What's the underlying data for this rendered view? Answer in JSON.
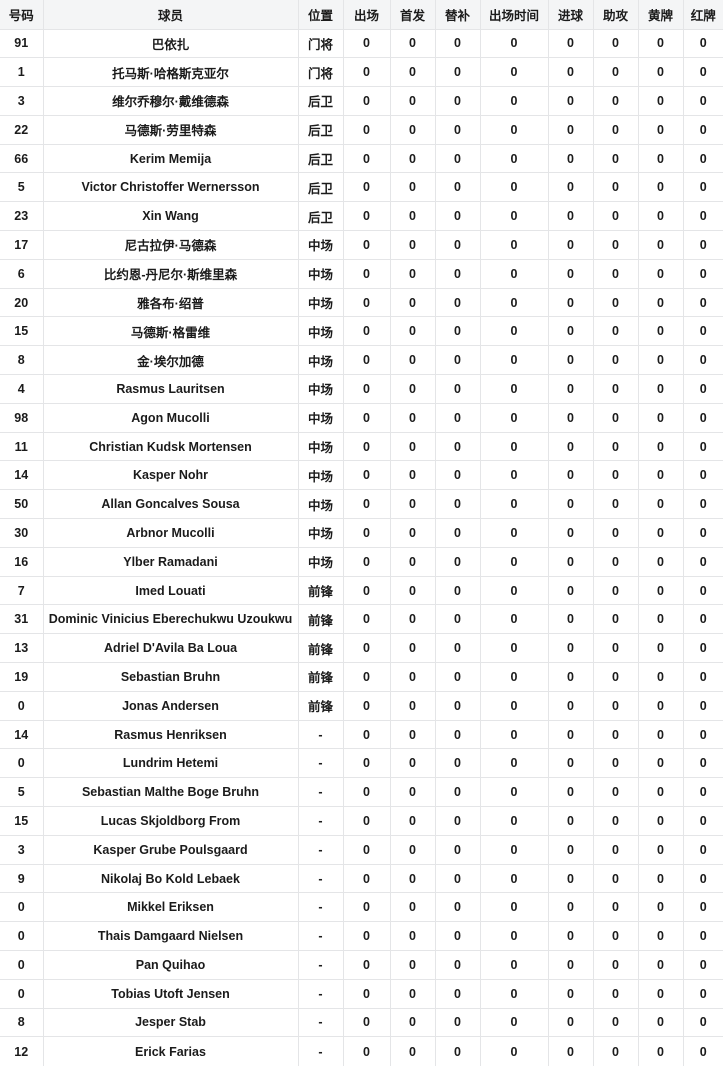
{
  "table": {
    "headers": [
      "号码",
      "球员",
      "位置",
      "出场",
      "首发",
      "替补",
      "出场时间",
      "进球",
      "助攻",
      "黄牌",
      "红牌"
    ],
    "rows": [
      {
        "num": "91",
        "name": "巴依扎",
        "pos": "门将",
        "stats": [
          0,
          0,
          0,
          0,
          0,
          0,
          0,
          0
        ]
      },
      {
        "num": "1",
        "name": "托马斯·哈格斯克亚尔",
        "pos": "门将",
        "stats": [
          0,
          0,
          0,
          0,
          0,
          0,
          0,
          0
        ]
      },
      {
        "num": "3",
        "name": "维尔乔穆尔·戴维德森",
        "pos": "后卫",
        "stats": [
          0,
          0,
          0,
          0,
          0,
          0,
          0,
          0
        ]
      },
      {
        "num": "22",
        "name": "马德斯·劳里特森",
        "pos": "后卫",
        "stats": [
          0,
          0,
          0,
          0,
          0,
          0,
          0,
          0
        ]
      },
      {
        "num": "66",
        "name": "Kerim Memija",
        "pos": "后卫",
        "stats": [
          0,
          0,
          0,
          0,
          0,
          0,
          0,
          0
        ]
      },
      {
        "num": "5",
        "name": "Victor Christoffer Wernersson",
        "pos": "后卫",
        "stats": [
          0,
          0,
          0,
          0,
          0,
          0,
          0,
          0
        ]
      },
      {
        "num": "23",
        "name": "Xin Wang",
        "pos": "后卫",
        "stats": [
          0,
          0,
          0,
          0,
          0,
          0,
          0,
          0
        ]
      },
      {
        "num": "17",
        "name": "尼古拉伊·马德森",
        "pos": "中场",
        "stats": [
          0,
          0,
          0,
          0,
          0,
          0,
          0,
          0
        ]
      },
      {
        "num": "6",
        "name": "比约恩-丹尼尔·斯维里森",
        "pos": "中场",
        "stats": [
          0,
          0,
          0,
          0,
          0,
          0,
          0,
          0
        ]
      },
      {
        "num": "20",
        "name": "雅各布·绍普",
        "pos": "中场",
        "stats": [
          0,
          0,
          0,
          0,
          0,
          0,
          0,
          0
        ]
      },
      {
        "num": "15",
        "name": "马德斯·格雷维",
        "pos": "中场",
        "stats": [
          0,
          0,
          0,
          0,
          0,
          0,
          0,
          0
        ]
      },
      {
        "num": "8",
        "name": "金·埃尔加德",
        "pos": "中场",
        "stats": [
          0,
          0,
          0,
          0,
          0,
          0,
          0,
          0
        ]
      },
      {
        "num": "4",
        "name": "Rasmus Lauritsen",
        "pos": "中场",
        "stats": [
          0,
          0,
          0,
          0,
          0,
          0,
          0,
          0
        ]
      },
      {
        "num": "98",
        "name": "Agon Mucolli",
        "pos": "中场",
        "stats": [
          0,
          0,
          0,
          0,
          0,
          0,
          0,
          0
        ]
      },
      {
        "num": "11",
        "name": "Christian Kudsk Mortensen",
        "pos": "中场",
        "stats": [
          0,
          0,
          0,
          0,
          0,
          0,
          0,
          0
        ]
      },
      {
        "num": "14",
        "name": "Kasper Nohr",
        "pos": "中场",
        "stats": [
          0,
          0,
          0,
          0,
          0,
          0,
          0,
          0
        ]
      },
      {
        "num": "50",
        "name": "Allan Goncalves Sousa",
        "pos": "中场",
        "stats": [
          0,
          0,
          0,
          0,
          0,
          0,
          0,
          0
        ]
      },
      {
        "num": "30",
        "name": "Arbnor Mucolli",
        "pos": "中场",
        "stats": [
          0,
          0,
          0,
          0,
          0,
          0,
          0,
          0
        ]
      },
      {
        "num": "16",
        "name": "Ylber Ramadani",
        "pos": "中场",
        "stats": [
          0,
          0,
          0,
          0,
          0,
          0,
          0,
          0
        ]
      },
      {
        "num": "7",
        "name": "Imed Louati",
        "pos": "前锋",
        "stats": [
          0,
          0,
          0,
          0,
          0,
          0,
          0,
          0
        ]
      },
      {
        "num": "31",
        "name": "Dominic Vinicius Eberechukwu Uzoukwu",
        "pos": "前锋",
        "stats": [
          0,
          0,
          0,
          0,
          0,
          0,
          0,
          0
        ]
      },
      {
        "num": "13",
        "name": "Adriel D'Avila Ba Loua",
        "pos": "前锋",
        "stats": [
          0,
          0,
          0,
          0,
          0,
          0,
          0,
          0
        ]
      },
      {
        "num": "19",
        "name": "Sebastian Bruhn",
        "pos": "前锋",
        "stats": [
          0,
          0,
          0,
          0,
          0,
          0,
          0,
          0
        ]
      },
      {
        "num": "0",
        "name": "Jonas Andersen",
        "pos": "前锋",
        "stats": [
          0,
          0,
          0,
          0,
          0,
          0,
          0,
          0
        ]
      },
      {
        "num": "14",
        "name": "Rasmus Henriksen",
        "pos": "-",
        "stats": [
          0,
          0,
          0,
          0,
          0,
          0,
          0,
          0
        ]
      },
      {
        "num": "0",
        "name": "Lundrim Hetemi",
        "pos": "-",
        "stats": [
          0,
          0,
          0,
          0,
          0,
          0,
          0,
          0
        ]
      },
      {
        "num": "5",
        "name": "Sebastian Malthe Boge Bruhn",
        "pos": "-",
        "stats": [
          0,
          0,
          0,
          0,
          0,
          0,
          0,
          0
        ]
      },
      {
        "num": "15",
        "name": "Lucas Skjoldborg From",
        "pos": "-",
        "stats": [
          0,
          0,
          0,
          0,
          0,
          0,
          0,
          0
        ]
      },
      {
        "num": "3",
        "name": "Kasper Grube Poulsgaard",
        "pos": "-",
        "stats": [
          0,
          0,
          0,
          0,
          0,
          0,
          0,
          0
        ]
      },
      {
        "num": "9",
        "name": "Nikolaj Bo Kold Lebaek",
        "pos": "-",
        "stats": [
          0,
          0,
          0,
          0,
          0,
          0,
          0,
          0
        ]
      },
      {
        "num": "0",
        "name": "Mikkel Eriksen",
        "pos": "-",
        "stats": [
          0,
          0,
          0,
          0,
          0,
          0,
          0,
          0
        ]
      },
      {
        "num": "0",
        "name": "Thais Damgaard Nielsen",
        "pos": "-",
        "stats": [
          0,
          0,
          0,
          0,
          0,
          0,
          0,
          0
        ]
      },
      {
        "num": "0",
        "name": "Pan Quihao",
        "pos": "-",
        "stats": [
          0,
          0,
          0,
          0,
          0,
          0,
          0,
          0
        ]
      },
      {
        "num": "0",
        "name": "Tobias Utoft Jensen",
        "pos": "-",
        "stats": [
          0,
          0,
          0,
          0,
          0,
          0,
          0,
          0
        ]
      },
      {
        "num": "8",
        "name": "Jesper Stab",
        "pos": "-",
        "stats": [
          0,
          0,
          0,
          0,
          0,
          0,
          0,
          0
        ]
      },
      {
        "num": "12",
        "name": "Erick Farias",
        "pos": "-",
        "stats": [
          0,
          0,
          0,
          0,
          0,
          0,
          0,
          0
        ]
      }
    ]
  },
  "colors": {
    "header_bg": "#f4f5f6",
    "border": "#e4e5e7",
    "text": "#1b1b1b"
  }
}
